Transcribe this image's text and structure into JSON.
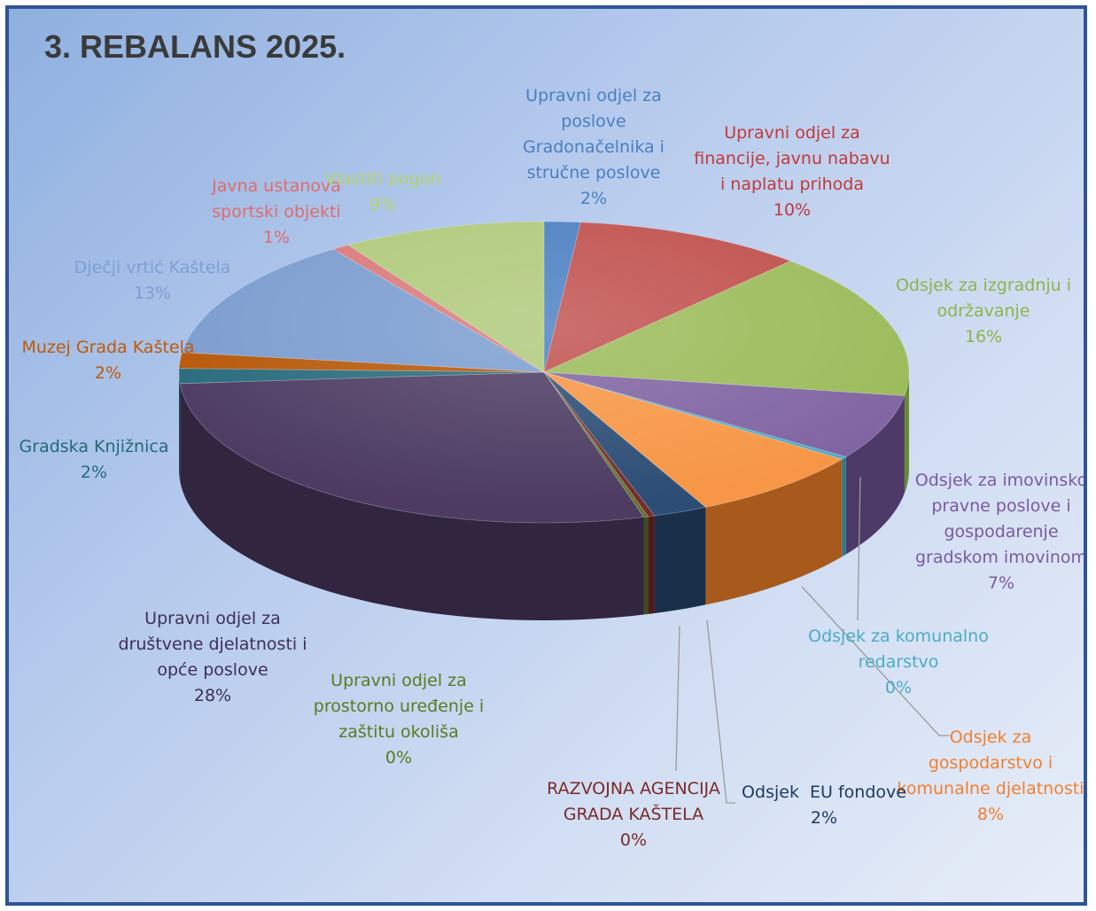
{
  "title": "3. REBALANS 2025.",
  "chart_data": {
    "type": "pie",
    "title": "3. REBALANS 2025.",
    "slices": [
      {
        "name": "Upravni odjel za\nposlove\nGradonačelnika i\nstručne poslove",
        "pct": "2%",
        "value": 1.6,
        "color": "#4a7fc1",
        "dark": "#2e5585",
        "label_color": "#4a7fc1"
      },
      {
        "name": "Upravni odjel za\nfinancije, javnu nabavu\ni naplatu prihoda",
        "pct": "10%",
        "value": 10.2,
        "color": "#c0504d",
        "dark": "#862f2d",
        "label_color": "#c0393b"
      },
      {
        "name": "Odsjek za izgradnju i\nodržavanje",
        "pct": "16%",
        "value": 15.7,
        "color": "#9bbb59",
        "dark": "#6b8a32",
        "label_color": "#8db54a"
      },
      {
        "name": "Odsjek za imovinsko\npravne poslove i\ngospodarenje\ngradskom imovinom",
        "pct": "7%",
        "value": 7.0,
        "color": "#8064a2",
        "dark": "#4e3a68",
        "label_color": "#7a5aa0"
      },
      {
        "name": "Odsjek za komunalno\nredarstvo",
        "pct": "0%",
        "value": 0.3,
        "color": "#4bacc6",
        "dark": "#2b7a8f",
        "label_color": "#4bacc6"
      },
      {
        "name": "Odsjek za\ngospodarstvo i\nkomunalne djelatnosti",
        "pct": "8%",
        "value": 7.9,
        "color": "#f79646",
        "dark": "#a85a1c",
        "label_color": "#f08030"
      },
      {
        "name": "Odsjek  EU fondove",
        "pct": "2%",
        "value": 2.4,
        "color": "#2c4d75",
        "dark": "#1a2f4a",
        "label_color": "#1f3a60"
      },
      {
        "name": "RAZVOJNA AGENCIJA\nGRADA KAŠTELA",
        "pct": "0%",
        "value": 0.3,
        "color": "#772c2a",
        "dark": "#4d1b1a",
        "label_color": "#7a2a28"
      },
      {
        "name": "Upravni odjel za\nprostorno uređenje i\nzaštitu okoliša",
        "pct": "0%",
        "value": 0.2,
        "color": "#5f7530",
        "dark": "#3d4c1e",
        "label_color": "#5a7a20"
      },
      {
        "name": "Upravni odjel za\ndruštvene djelatnosti i\nopće poslove",
        "pct": "28%",
        "value": 28.2,
        "color": "#4d3b62",
        "dark": "#32253f",
        "label_color": "#3d2f55"
      },
      {
        "name": "Gradska Knjižnica",
        "pct": "2%",
        "value": 1.6,
        "color": "#276a7c",
        "dark": "#174452",
        "label_color": "#236a78"
      },
      {
        "name": "Muzej Grada Kaštela",
        "pct": "2%",
        "value": 1.7,
        "color": "#b65708",
        "dark": "#7a3a05",
        "label_color": "#c05a08"
      },
      {
        "name": "Dječji vrtić Kaštela",
        "pct": "13%",
        "value": 13.1,
        "color": "#7a9ccf",
        "dark": "#4d6e9e",
        "label_color": "#7c9fd4"
      },
      {
        "name": "Javna ustanova\nsportski objekti",
        "pct": "1%",
        "value": 0.8,
        "color": "#d9797a",
        "dark": "#a04f50",
        "label_color": "#e06c6c"
      },
      {
        "name": "Vlastiti pogon",
        "pct": "9%",
        "value": 9.0,
        "color": "#afc97a",
        "dark": "#7d9450",
        "label_color": "#b5d36a"
      }
    ]
  }
}
